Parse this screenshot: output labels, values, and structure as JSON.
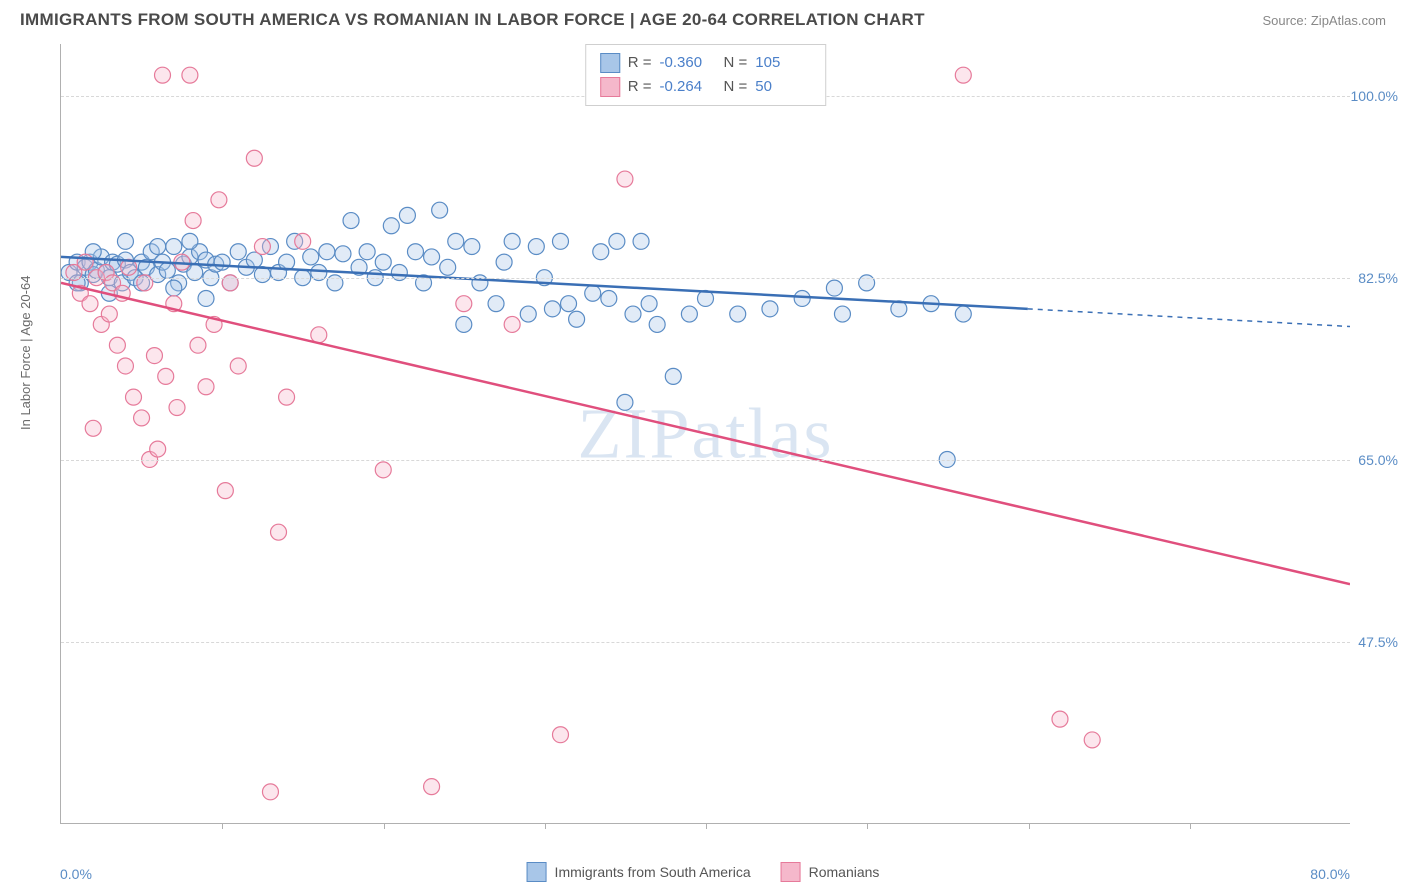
{
  "title": "IMMIGRANTS FROM SOUTH AMERICA VS ROMANIAN IN LABOR FORCE | AGE 20-64 CORRELATION CHART",
  "source": "Source: ZipAtlas.com",
  "watermark": "ZIPatlas",
  "ylabel": "In Labor Force | Age 20-64",
  "chart": {
    "type": "scatter",
    "xlim": [
      0,
      80
    ],
    "ylim": [
      30,
      105
    ],
    "xtick_labels": [
      "0.0%",
      "80.0%"
    ],
    "xtick_minor_positions": [
      10,
      20,
      30,
      40,
      50,
      60,
      70
    ],
    "ytick_positions": [
      47.5,
      65.0,
      82.5,
      100.0
    ],
    "ytick_labels": [
      "47.5%",
      "65.0%",
      "82.5%",
      "100.0%"
    ],
    "background_color": "#ffffff",
    "grid_color": "#d8d8d8",
    "marker_radius": 8,
    "marker_stroke_width": 1.2,
    "marker_fill_opacity": 0.35,
    "series": [
      {
        "name": "Immigrants from South America",
        "color_stroke": "#5a8cc5",
        "color_fill": "#a8c6e8",
        "R": "-0.360",
        "N": "105",
        "trend": {
          "x1": 0,
          "y1": 84.5,
          "x2": 60,
          "y2": 79.5,
          "dash_x2": 80,
          "dash_y2": 77.8,
          "stroke": "#3a6fb5",
          "width": 2.5
        },
        "points": [
          [
            0.5,
            83
          ],
          [
            1,
            84
          ],
          [
            1.2,
            82
          ],
          [
            1.5,
            83.5
          ],
          [
            1.8,
            84
          ],
          [
            2,
            82.8
          ],
          [
            2.2,
            83.2
          ],
          [
            2.5,
            84.5
          ],
          [
            2.8,
            83
          ],
          [
            3,
            82.5
          ],
          [
            3.2,
            84
          ],
          [
            3.5,
            83.8
          ],
          [
            3.8,
            82
          ],
          [
            4,
            84.2
          ],
          [
            4.3,
            83
          ],
          [
            4.6,
            82.5
          ],
          [
            5,
            84
          ],
          [
            5.3,
            83.5
          ],
          [
            5.6,
            85
          ],
          [
            6,
            82.8
          ],
          [
            6.3,
            84
          ],
          [
            6.6,
            83.2
          ],
          [
            7,
            85.5
          ],
          [
            7.3,
            82
          ],
          [
            7.6,
            83.8
          ],
          [
            8,
            84.5
          ],
          [
            8.3,
            83
          ],
          [
            8.6,
            85
          ],
          [
            9,
            84.2
          ],
          [
            9.3,
            82.5
          ],
          [
            9.6,
            83.8
          ],
          [
            10,
            84
          ],
          [
            10.5,
            82
          ],
          [
            11,
            85
          ],
          [
            11.5,
            83.5
          ],
          [
            12,
            84.2
          ],
          [
            12.5,
            82.8
          ],
          [
            13,
            85.5
          ],
          [
            13.5,
            83
          ],
          [
            14,
            84
          ],
          [
            14.5,
            86
          ],
          [
            15,
            82.5
          ],
          [
            15.5,
            84.5
          ],
          [
            16,
            83
          ],
          [
            16.5,
            85
          ],
          [
            17,
            82
          ],
          [
            17.5,
            84.8
          ],
          [
            18,
            88
          ],
          [
            18.5,
            83.5
          ],
          [
            19,
            85
          ],
          [
            19.5,
            82.5
          ],
          [
            20,
            84
          ],
          [
            20.5,
            87.5
          ],
          [
            21,
            83
          ],
          [
            21.5,
            88.5
          ],
          [
            22,
            85
          ],
          [
            22.5,
            82
          ],
          [
            23,
            84.5
          ],
          [
            23.5,
            89
          ],
          [
            24,
            83.5
          ],
          [
            24.5,
            86
          ],
          [
            25,
            78
          ],
          [
            25.5,
            85.5
          ],
          [
            26,
            82
          ],
          [
            27,
            80
          ],
          [
            27.5,
            84
          ],
          [
            28,
            86
          ],
          [
            29,
            79
          ],
          [
            29.5,
            85.5
          ],
          [
            30,
            82.5
          ],
          [
            30.5,
            79.5
          ],
          [
            31,
            86
          ],
          [
            31.5,
            80
          ],
          [
            32,
            78.5
          ],
          [
            33,
            81
          ],
          [
            33.5,
            85
          ],
          [
            34,
            80.5
          ],
          [
            34.5,
            86
          ],
          [
            35,
            70.5
          ],
          [
            35.5,
            79
          ],
          [
            36,
            86
          ],
          [
            36.5,
            80
          ],
          [
            37,
            78
          ],
          [
            38,
            73
          ],
          [
            39,
            79
          ],
          [
            40,
            80.5
          ],
          [
            42,
            79
          ],
          [
            44,
            79.5
          ],
          [
            46,
            80.5
          ],
          [
            48,
            81.5
          ],
          [
            48.5,
            79
          ],
          [
            50,
            82
          ],
          [
            52,
            79.5
          ],
          [
            54,
            80
          ],
          [
            55,
            65
          ],
          [
            56,
            79
          ],
          [
            1,
            82
          ],
          [
            2,
            85
          ],
          [
            3,
            81
          ],
          [
            4,
            86
          ],
          [
            5,
            82
          ],
          [
            6,
            85.5
          ],
          [
            7,
            81.5
          ],
          [
            8,
            86
          ],
          [
            9,
            80.5
          ]
        ]
      },
      {
        "name": "Romanians",
        "color_stroke": "#e67a9a",
        "color_fill": "#f5b8cb",
        "R": "-0.264",
        "N": "50",
        "trend": {
          "x1": 0,
          "y1": 82,
          "x2": 80,
          "y2": 53,
          "stroke": "#e04f7d",
          "width": 2.5
        },
        "points": [
          [
            0.8,
            83
          ],
          [
            1.2,
            81
          ],
          [
            1.5,
            84
          ],
          [
            1.8,
            80
          ],
          [
            2,
            68
          ],
          [
            2.2,
            82.5
          ],
          [
            2.5,
            78
          ],
          [
            2.8,
            83
          ],
          [
            3,
            79
          ],
          [
            3.2,
            82
          ],
          [
            3.5,
            76
          ],
          [
            3.8,
            81
          ],
          [
            4,
            74
          ],
          [
            4.2,
            83.5
          ],
          [
            4.5,
            71
          ],
          [
            5,
            69
          ],
          [
            5.2,
            82
          ],
          [
            5.5,
            65
          ],
          [
            5.8,
            75
          ],
          [
            6,
            66
          ],
          [
            6.3,
            102
          ],
          [
            6.5,
            73
          ],
          [
            7,
            80
          ],
          [
            7.2,
            70
          ],
          [
            7.5,
            84
          ],
          [
            8,
            102
          ],
          [
            8.2,
            88
          ],
          [
            8.5,
            76
          ],
          [
            9,
            72
          ],
          [
            9.5,
            78
          ],
          [
            9.8,
            90
          ],
          [
            10.2,
            62
          ],
          [
            10.5,
            82
          ],
          [
            11,
            74
          ],
          [
            12,
            94
          ],
          [
            12.5,
            85.5
          ],
          [
            13,
            33
          ],
          [
            13.5,
            58
          ],
          [
            14,
            71
          ],
          [
            15,
            86
          ],
          [
            16,
            77
          ],
          [
            20,
            64
          ],
          [
            23,
            33.5
          ],
          [
            25,
            80
          ],
          [
            28,
            78
          ],
          [
            31,
            38.5
          ],
          [
            35,
            92
          ],
          [
            56,
            102
          ],
          [
            62,
            40
          ],
          [
            64,
            38
          ]
        ]
      }
    ]
  },
  "stats_legend": {
    "rows": [
      {
        "swatch_fill": "#a8c6e8",
        "swatch_stroke": "#5a8cc5",
        "R": "-0.360",
        "N": "105"
      },
      {
        "swatch_fill": "#f5b8cb",
        "swatch_stroke": "#e67a9a",
        "R": "-0.264",
        "N": "50"
      }
    ]
  },
  "bottom_legend": [
    {
      "swatch_fill": "#a8c6e8",
      "swatch_stroke": "#5a8cc5",
      "label": "Immigrants from South America"
    },
    {
      "swatch_fill": "#f5b8cb",
      "swatch_stroke": "#e67a9a",
      "label": "Romanians"
    }
  ]
}
